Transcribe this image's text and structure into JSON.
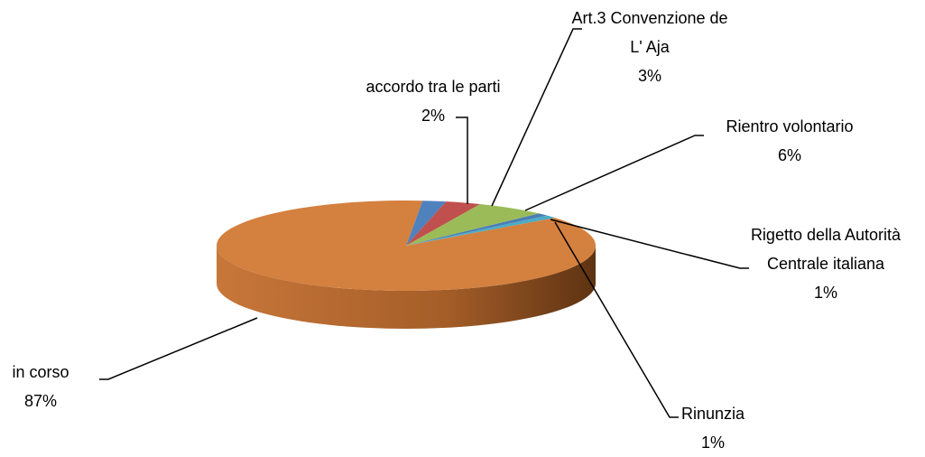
{
  "chart_data": {
    "type": "pie3d",
    "categories": [
      "accordo tra le parti",
      "Art.3 Convenzione de L' Aja",
      "Rientro volontario",
      "Rigetto della Autorità Centrale italiana",
      "Rinunzia",
      "in corso"
    ],
    "values": [
      2,
      3,
      6,
      1,
      1,
      87
    ],
    "value_labels": [
      "2%",
      "3%",
      "6%",
      "1%",
      "1%",
      "87%"
    ],
    "colors": [
      "#4f81bd",
      "#c0504d",
      "#9bbb59",
      "#4a7eb5",
      "#4bacc6",
      "#d4803f"
    ]
  }
}
